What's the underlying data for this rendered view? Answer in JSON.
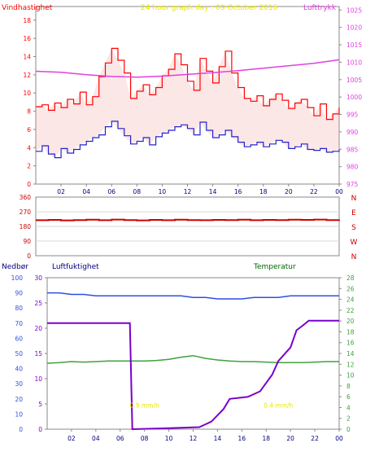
{
  "colors": {
    "wind": "#ff0000",
    "gust_fill": "#f2a0a0",
    "mean_wind": "#2222cc",
    "pressure": "#e040e0",
    "direction": "#cc0000",
    "rain": "#7a00cc",
    "humidity": "#2f4fe0",
    "temperature": "#40a040",
    "axis_black": "#000000",
    "axis_navy": "#000080",
    "axis_green": "#006600",
    "annotation": "#e8e800"
  },
  "chart_data": [
    {
      "type": "line",
      "title": "24 hour graph day : 09 October 2016",
      "ylabel_left": "Vindhastighet",
      "ylabel_right": "Lufttrykk",
      "x_ticks": [
        "02",
        "04",
        "06",
        "08",
        "10",
        "12",
        "14",
        "16",
        "18",
        "20",
        "22",
        "00"
      ],
      "y_left_ticks": [
        "0",
        "2",
        "4",
        "6",
        "8",
        "10",
        "12",
        "14",
        "16",
        "18"
      ],
      "y_right_ticks": [
        "975",
        "980",
        "985",
        "990",
        "995",
        "1000",
        "1005",
        "1010",
        "1015",
        "1020",
        "1025"
      ],
      "xlim": [
        0,
        24
      ],
      "ylim_left": [
        0,
        19.5
      ],
      "ylim_right": [
        975,
        1026
      ],
      "grid": false,
      "series": [
        {
          "axis": "left",
          "x": [
            0,
            0.5,
            1,
            1.5,
            2,
            2.5,
            3,
            3.5,
            4,
            4.5,
            5,
            5.5,
            6,
            6.5,
            7,
            7.5,
            8,
            8.5,
            9,
            9.5,
            10,
            10.5,
            11,
            11.5,
            12,
            12.5,
            13,
            13.5,
            14,
            14.5,
            15,
            15.5,
            16,
            16.5,
            17,
            17.5,
            18,
            18.5,
            19,
            19.5,
            20,
            20.5,
            21,
            21.5,
            22,
            22.5,
            23,
            23.5,
            24
          ],
          "values": [
            8.5,
            8.7,
            8.1,
            8.9,
            8.4,
            9.3,
            8.8,
            10.1,
            8.7,
            9.6,
            11.8,
            13.3,
            14.9,
            13.6,
            12.2,
            9.4,
            10.2,
            10.9,
            9.8,
            10.6,
            11.9,
            12.6,
            14.3,
            13.1,
            11.3,
            10.3,
            13.8,
            12.4,
            11.1,
            12.9,
            14.6,
            12.2,
            10.6,
            9.4,
            9.1,
            9.7,
            8.6,
            9.3,
            9.9,
            9.2,
            8.3,
            8.9,
            9.3,
            8.4,
            7.5,
            8.8,
            7.1,
            7.7,
            8.4
          ]
        },
        {
          "axis": "left",
          "x": [
            0,
            0.5,
            1,
            1.5,
            2,
            2.5,
            3,
            3.5,
            4,
            4.5,
            5,
            5.5,
            6,
            6.5,
            7,
            7.5,
            8,
            8.5,
            9,
            9.5,
            10,
            10.5,
            11,
            11.5,
            12,
            12.5,
            13,
            13.5,
            14,
            14.5,
            15,
            15.5,
            16,
            16.5,
            17,
            17.5,
            18,
            18.5,
            19,
            19.5,
            20,
            20.5,
            21,
            21.5,
            22,
            22.5,
            23,
            23.5,
            24
          ],
          "values": [
            3.6,
            4.2,
            3.3,
            2.9,
            3.9,
            3.4,
            3.8,
            4.3,
            4.7,
            5.1,
            5.4,
            6.3,
            6.9,
            6.1,
            5.3,
            4.4,
            4.7,
            5.1,
            4.3,
            5.2,
            5.6,
            5.9,
            6.3,
            6.5,
            6.1,
            5.4,
            6.8,
            5.9,
            5.1,
            5.4,
            5.9,
            5.2,
            4.6,
            4.1,
            4.3,
            4.6,
            4.1,
            4.4,
            4.8,
            4.6,
            3.9,
            4.1,
            4.4,
            3.8,
            3.7,
            3.9,
            3.5,
            3.6,
            3.8
          ]
        },
        {
          "axis": "right",
          "x": [
            0,
            2,
            4,
            6,
            8,
            10,
            12,
            14,
            16,
            18,
            20,
            22,
            24
          ],
          "values": [
            1007.4,
            1007.1,
            1006.4,
            1005.9,
            1005.7,
            1006.0,
            1006.5,
            1007.0,
            1007.6,
            1008.3,
            1009.0,
            1009.7,
            1010.7
          ]
        }
      ]
    },
    {
      "type": "scatter",
      "x_ticks": [],
      "y_ticks": [
        "0",
        "90",
        "180",
        "270",
        "360"
      ],
      "y_right_labels": [
        "N",
        "W",
        "S",
        "E",
        "N"
      ],
      "xlim": [
        0,
        24
      ],
      "ylim": [
        0,
        360
      ],
      "series": [
        {
          "x": [
            0,
            1,
            2,
            3,
            4,
            5,
            6,
            7,
            8,
            9,
            10,
            11,
            12,
            13,
            14,
            15,
            16,
            17,
            18,
            19,
            20,
            21,
            22,
            23,
            24
          ],
          "values": [
            218,
            220,
            217,
            219,
            221,
            218,
            222,
            219,
            217,
            220,
            218,
            221,
            219,
            218,
            220,
            219,
            221,
            218,
            220,
            219,
            221,
            220,
            222,
            219,
            221
          ]
        }
      ]
    },
    {
      "type": "line",
      "ylabel_far_left": "Nedbør",
      "ylabel_left": "Luftfuktighet",
      "ylabel_right": "Temperatur",
      "x_ticks": [
        "02",
        "04",
        "06",
        "08",
        "10",
        "12",
        "14",
        "16",
        "18",
        "20",
        "22",
        "00"
      ],
      "y_rain_ticks": [
        "0",
        "5",
        "10",
        "15",
        "20",
        "25",
        "30"
      ],
      "y_humidity_ticks": [
        "0",
        "10",
        "20",
        "30",
        "40",
        "50",
        "60",
        "70",
        "80",
        "90",
        "100"
      ],
      "y_temperature_ticks": [
        "0",
        "2",
        "4",
        "6",
        "8",
        "10",
        "12",
        "14",
        "16",
        "18",
        "20",
        "22",
        "24",
        "26",
        "28"
      ],
      "xlim": [
        0,
        24
      ],
      "ylim_rain": [
        0,
        30
      ],
      "ylim_humidity": [
        0,
        100
      ],
      "ylim_temperature": [
        0,
        28
      ],
      "annotations": [
        {
          "text": "0.9 mm/h",
          "x": 8
        },
        {
          "text": "0.4 mm/h",
          "x": 19
        }
      ],
      "series": [
        {
          "axis": "humidity",
          "x": [
            0,
            1,
            2,
            3,
            4,
            5,
            6,
            7,
            8,
            9,
            10,
            11,
            12,
            13,
            14,
            15,
            16,
            17,
            18,
            19,
            20,
            21,
            22,
            23,
            24
          ],
          "values": [
            90,
            90,
            89,
            89,
            88,
            88,
            88,
            88,
            88,
            88,
            88,
            88,
            87,
            87,
            86,
            86,
            86,
            87,
            87,
            87,
            88,
            88,
            88,
            88,
            88
          ]
        },
        {
          "axis": "temperature",
          "x": [
            0,
            1,
            2,
            3,
            4,
            5,
            6,
            7,
            8,
            9,
            10,
            11,
            12,
            13,
            14,
            15,
            16,
            17,
            18,
            19,
            20,
            21,
            22,
            23,
            24
          ],
          "values": [
            12.2,
            12.3,
            12.5,
            12.4,
            12.5,
            12.6,
            12.6,
            12.6,
            12.6,
            12.7,
            12.9,
            13.3,
            13.6,
            13.1,
            12.8,
            12.6,
            12.5,
            12.5,
            12.4,
            12.3,
            12.3,
            12.3,
            12.4,
            12.5,
            12.5
          ]
        },
        {
          "axis": "rain",
          "x": [
            0,
            6.8,
            7,
            10,
            12.5,
            13.5,
            14.5,
            15,
            16.5,
            17.5,
            18.5,
            19,
            20,
            20.5,
            21,
            21.5,
            24
          ],
          "values": [
            21,
            21,
            0,
            0.2,
            0.4,
            1.5,
            4,
            6,
            6.4,
            7.5,
            10.8,
            13.5,
            16.2,
            19.6,
            20.5,
            21.5,
            21.5
          ]
        }
      ]
    }
  ]
}
